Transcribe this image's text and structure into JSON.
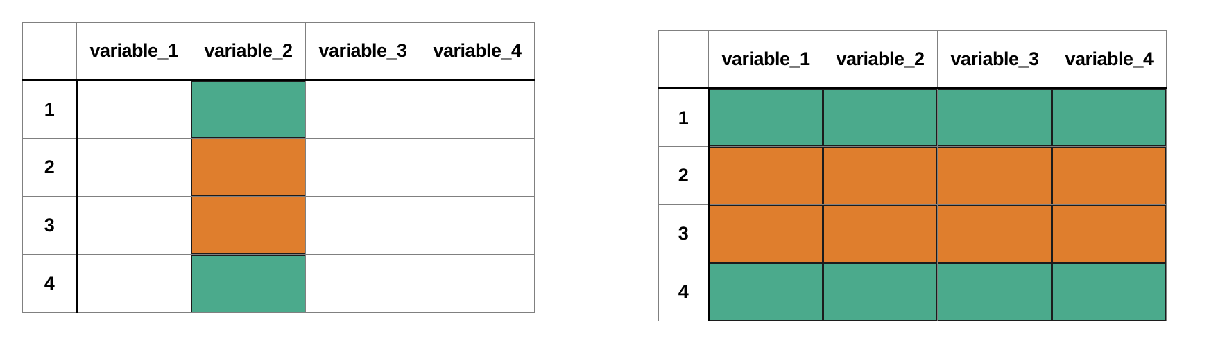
{
  "colors": {
    "filled_green": "#4BAA8C",
    "filled_orange": "#DF7E2D",
    "grid_gray": "#808080",
    "divider_black": "#000000",
    "cell_edge_dark": "#1c1c1c",
    "background": "#FFFFFF"
  },
  "tables": [
    {
      "name": "left-pattern-table",
      "corner_label": "",
      "columns": [
        "variable_1",
        "variable_2",
        "variable_3",
        "variable_4"
      ],
      "row_labels": [
        "1",
        "2",
        "3",
        "4"
      ],
      "cells": [
        [
          "empty",
          "green",
          "empty",
          "empty"
        ],
        [
          "empty",
          "orange",
          "empty",
          "empty"
        ],
        [
          "empty",
          "orange",
          "empty",
          "empty"
        ],
        [
          "empty",
          "green",
          "empty",
          "empty"
        ]
      ]
    },
    {
      "name": "right-pattern-table",
      "corner_label": "",
      "columns": [
        "variable_1",
        "variable_2",
        "variable_3",
        "variable_4"
      ],
      "row_labels": [
        "1",
        "2",
        "3",
        "4"
      ],
      "cells": [
        [
          "green",
          "green",
          "green",
          "green"
        ],
        [
          "orange",
          "orange",
          "orange",
          "orange"
        ],
        [
          "orange",
          "orange",
          "orange",
          "orange"
        ],
        [
          "green",
          "green",
          "green",
          "green"
        ]
      ]
    }
  ],
  "chart_data": [
    {
      "type": "heatmap",
      "title": "",
      "x_categories": [
        "variable_1",
        "variable_2",
        "variable_3",
        "variable_4"
      ],
      "y_categories": [
        "1",
        "2",
        "3",
        "4"
      ],
      "values": [
        [
          "empty",
          "green",
          "empty",
          "empty"
        ],
        [
          "empty",
          "orange",
          "empty",
          "empty"
        ],
        [
          "empty",
          "orange",
          "empty",
          "empty"
        ],
        [
          "empty",
          "green",
          "empty",
          "empty"
        ]
      ],
      "color_map": {
        "green": "#4BAA8C",
        "orange": "#DF7E2D",
        "empty": "#FFFFFF"
      },
      "grid": true,
      "legend": "none"
    },
    {
      "type": "heatmap",
      "title": "",
      "x_categories": [
        "variable_1",
        "variable_2",
        "variable_3",
        "variable_4"
      ],
      "y_categories": [
        "1",
        "2",
        "3",
        "4"
      ],
      "values": [
        [
          "green",
          "green",
          "green",
          "green"
        ],
        [
          "orange",
          "orange",
          "orange",
          "orange"
        ],
        [
          "orange",
          "orange",
          "orange",
          "orange"
        ],
        [
          "green",
          "green",
          "green",
          "green"
        ]
      ],
      "color_map": {
        "green": "#4BAA8C",
        "orange": "#DF7E2D",
        "empty": "#FFFFFF"
      },
      "grid": true,
      "legend": "none"
    }
  ]
}
